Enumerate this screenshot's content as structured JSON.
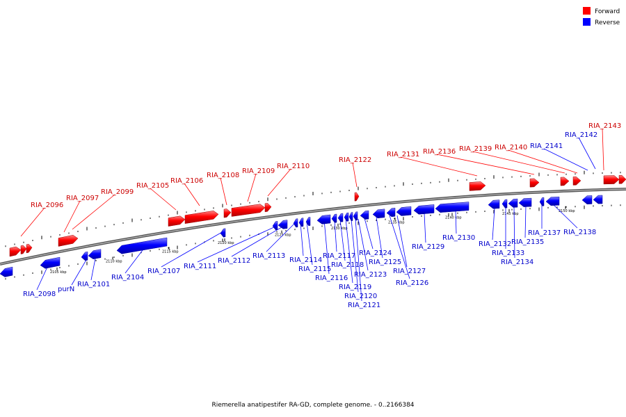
{
  "caption": "Riemerella anatipestifer RA-GD, complete genome. - 0..2166384",
  "legend": [
    {
      "label": "Forward",
      "color": "#ff0000"
    },
    {
      "label": "Reverse",
      "color": "#0000ff"
    }
  ],
  "colors": {
    "forward": "#ff0000",
    "reverse": "#0000ff",
    "forward_label": "#cc0000",
    "reverse_label": "#0000cc"
  },
  "tick_labels": [
    "2105 kbp",
    "2110 kbp",
    "2115 kbp",
    "2120 kbp",
    "2125 kbp",
    "2130 kbp",
    "2135 kbp",
    "2140 kbp",
    "2145 kbp",
    "2150 kbp"
  ],
  "genes": {
    "forward": [
      "RIA_2096",
      "RIA_2097",
      "RIA_2099",
      "RIA_2105",
      "RIA_2106",
      "RIA_2108",
      "RIA_2109",
      "RIA_2110",
      "RIA_2122",
      "RIA_2131",
      "RIA_2136",
      "RIA_2139",
      "RIA_2140",
      "RIA_2143"
    ],
    "reverse": [
      "RIA_2098",
      "purN",
      "RIA_2101",
      "RIA_2104",
      "RIA_2107",
      "RIA_2111",
      "RIA_2112",
      "RIA_2113",
      "RIA_2114",
      "RIA_2115",
      "RIA_2116",
      "RIA_2117",
      "RIA_2118",
      "RIA_2119",
      "RIA_2120",
      "RIA_2121",
      "RIA_2123",
      "RIA_2124",
      "RIA_2125",
      "RIA_2126",
      "RIA_2127",
      "RIA_2129",
      "RIA_2130",
      "RIA_2132",
      "RIA_2133",
      "RIA_2134",
      "RIA_2135",
      "RIA_2137",
      "RIA_2138",
      "RIA_2141",
      "RIA_2142"
    ]
  }
}
